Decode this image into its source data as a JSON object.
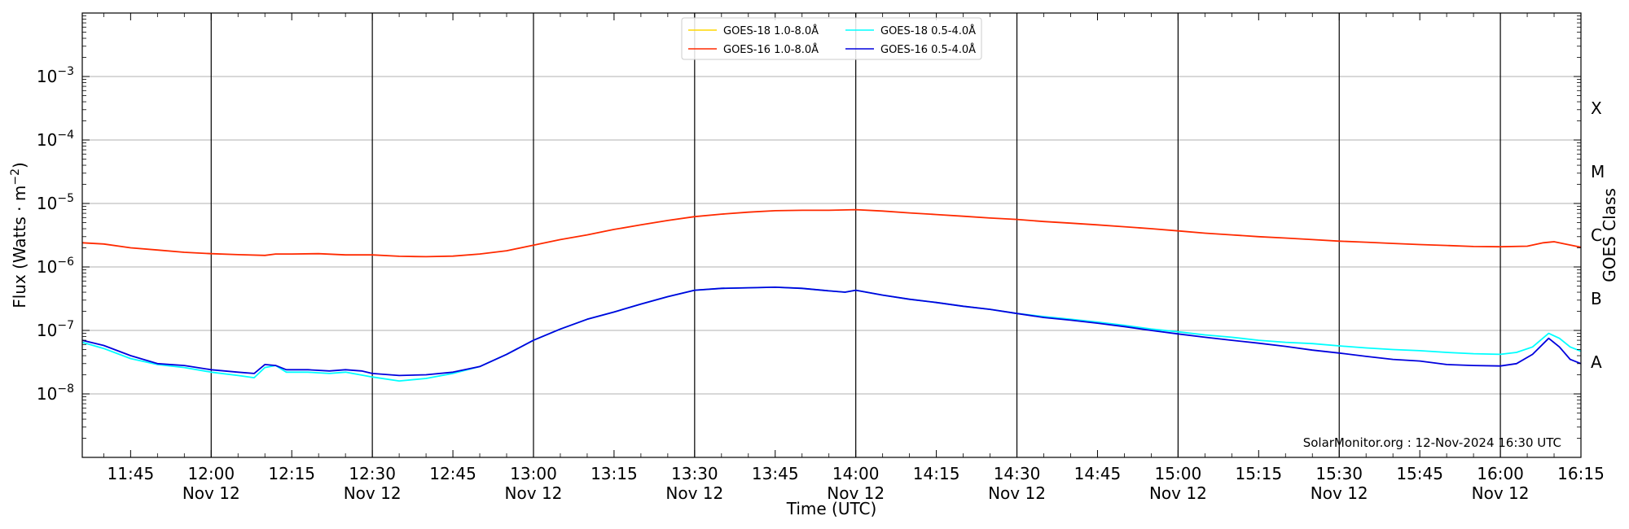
{
  "chart_data": {
    "type": "line",
    "xlabel": "Time (UTC)",
    "ylabel_main": "Flux (Watts · m",
    "ylabel_sup": "−2",
    "ylabel_close": ")",
    "y2label": "GOES Class",
    "watermark": "SolarMonitor.org : 12-Nov-2024 16:30 UTC",
    "y_scale": "log",
    "ylim": [
      1e-09,
      0.01
    ],
    "xlim": [
      "11:36",
      "16:15"
    ],
    "grid": "horizontal",
    "legend_position": "top-center",
    "y_ticks": [
      {
        "value": 0.001,
        "base": "10",
        "exp": "−3"
      },
      {
        "value": 0.0001,
        "base": "10",
        "exp": "−4"
      },
      {
        "value": 1e-05,
        "base": "10",
        "exp": "−5"
      },
      {
        "value": 1e-06,
        "base": "10",
        "exp": "−6"
      },
      {
        "value": 1e-07,
        "base": "10",
        "exp": "−7"
      },
      {
        "value": 1e-08,
        "base": "10",
        "exp": "−8"
      }
    ],
    "x_ticks": [
      {
        "time": "11:45",
        "label": "11:45",
        "date": ""
      },
      {
        "time": "12:00",
        "label": "12:00",
        "date": "Nov 12"
      },
      {
        "time": "12:15",
        "label": "12:15",
        "date": ""
      },
      {
        "time": "12:30",
        "label": "12:30",
        "date": "Nov 12"
      },
      {
        "time": "12:45",
        "label": "12:45",
        "date": ""
      },
      {
        "time": "13:00",
        "label": "13:00",
        "date": "Nov 12"
      },
      {
        "time": "13:15",
        "label": "13:15",
        "date": ""
      },
      {
        "time": "13:30",
        "label": "13:30",
        "date": "Nov 12"
      },
      {
        "time": "13:45",
        "label": "13:45",
        "date": ""
      },
      {
        "time": "14:00",
        "label": "14:00",
        "date": "Nov 12"
      },
      {
        "time": "14:15",
        "label": "14:15",
        "date": ""
      },
      {
        "time": "14:30",
        "label": "14:30",
        "date": "Nov 12"
      },
      {
        "time": "14:45",
        "label": "14:45",
        "date": ""
      },
      {
        "time": "15:00",
        "label": "15:00",
        "date": "Nov 12"
      },
      {
        "time": "15:15",
        "label": "15:15",
        "date": ""
      },
      {
        "time": "15:30",
        "label": "15:30",
        "date": "Nov 12"
      },
      {
        "time": "15:45",
        "label": "15:45",
        "date": ""
      },
      {
        "time": "16:00",
        "label": "16:00",
        "date": "Nov 12"
      },
      {
        "time": "16:15",
        "label": "16:15",
        "date": ""
      }
    ],
    "vertical_lines": [
      "12:00",
      "12:30",
      "13:00",
      "13:30",
      "14:00",
      "14:30",
      "15:00",
      "15:30",
      "16:00"
    ],
    "goes_classes": [
      {
        "label": "X",
        "value": 0.000316
      },
      {
        "label": "M",
        "value": 3.16e-05
      },
      {
        "label": "C",
        "value": 3.16e-06
      },
      {
        "label": "B",
        "value": 3.16e-07
      },
      {
        "label": "A",
        "value": 3.16e-08
      }
    ],
    "series": [
      {
        "name": "GOES-18 1.0-8.0Å",
        "color": "#ffd700",
        "points": []
      },
      {
        "name": "GOES-16 1.0-8.0Å",
        "color": "#ff2a00",
        "points": [
          [
            "11:36",
            2.4e-06
          ],
          [
            "11:40",
            2.3e-06
          ],
          [
            "11:45",
            2e-06
          ],
          [
            "11:50",
            1.85e-06
          ],
          [
            "11:55",
            1.7e-06
          ],
          [
            "12:00",
            1.62e-06
          ],
          [
            "12:05",
            1.56e-06
          ],
          [
            "12:10",
            1.52e-06
          ],
          [
            "12:12",
            1.6e-06
          ],
          [
            "12:15",
            1.6e-06
          ],
          [
            "12:20",
            1.62e-06
          ],
          [
            "12:25",
            1.55e-06
          ],
          [
            "12:30",
            1.55e-06
          ],
          [
            "12:35",
            1.47e-06
          ],
          [
            "12:40",
            1.45e-06
          ],
          [
            "12:45",
            1.48e-06
          ],
          [
            "12:50",
            1.6e-06
          ],
          [
            "12:55",
            1.8e-06
          ],
          [
            "13:00",
            2.2e-06
          ],
          [
            "13:05",
            2.7e-06
          ],
          [
            "13:10",
            3.2e-06
          ],
          [
            "13:15",
            3.9e-06
          ],
          [
            "13:20",
            4.6e-06
          ],
          [
            "13:25",
            5.4e-06
          ],
          [
            "13:30",
            6.2e-06
          ],
          [
            "13:35",
            6.8e-06
          ],
          [
            "13:40",
            7.3e-06
          ],
          [
            "13:45",
            7.7e-06
          ],
          [
            "13:50",
            7.8e-06
          ],
          [
            "13:55",
            7.8e-06
          ],
          [
            "14:00",
            8e-06
          ],
          [
            "14:05",
            7.6e-06
          ],
          [
            "14:10",
            7.1e-06
          ],
          [
            "14:15",
            6.7e-06
          ],
          [
            "14:20",
            6.3e-06
          ],
          [
            "14:25",
            5.9e-06
          ],
          [
            "14:30",
            5.6e-06
          ],
          [
            "14:35",
            5.2e-06
          ],
          [
            "14:40",
            4.9e-06
          ],
          [
            "14:45",
            4.6e-06
          ],
          [
            "14:50",
            4.3e-06
          ],
          [
            "14:55",
            4e-06
          ],
          [
            "15:00",
            3.7e-06
          ],
          [
            "15:05",
            3.4e-06
          ],
          [
            "15:10",
            3.2e-06
          ],
          [
            "15:15",
            3e-06
          ],
          [
            "15:20",
            2.85e-06
          ],
          [
            "15:25",
            2.7e-06
          ],
          [
            "15:30",
            2.55e-06
          ],
          [
            "15:35",
            2.45e-06
          ],
          [
            "15:40",
            2.35e-06
          ],
          [
            "15:45",
            2.25e-06
          ],
          [
            "15:50",
            2.18e-06
          ],
          [
            "15:55",
            2.1e-06
          ],
          [
            "16:00",
            2.08e-06
          ],
          [
            "16:05",
            2.12e-06
          ],
          [
            "16:08",
            2.4e-06
          ],
          [
            "16:10",
            2.5e-06
          ],
          [
            "16:12",
            2.3e-06
          ],
          [
            "16:15",
            2.05e-06
          ]
        ]
      },
      {
        "name": "GOES-18 0.5-4.0Å",
        "color": "#00ffff",
        "points": [
          [
            "11:36",
            6.5e-08
          ],
          [
            "11:40",
            5.2e-08
          ],
          [
            "11:45",
            3.6e-08
          ],
          [
            "11:50",
            2.9e-08
          ],
          [
            "11:55",
            2.6e-08
          ],
          [
            "12:00",
            2.2e-08
          ],
          [
            "12:05",
            1.95e-08
          ],
          [
            "12:08",
            1.8e-08
          ],
          [
            "12:10",
            2.6e-08
          ],
          [
            "12:12",
            2.8e-08
          ],
          [
            "12:14",
            2.2e-08
          ],
          [
            "12:18",
            2.2e-08
          ],
          [
            "12:22",
            2.1e-08
          ],
          [
            "12:25",
            2.2e-08
          ],
          [
            "12:30",
            1.85e-08
          ],
          [
            "12:35",
            1.6e-08
          ],
          [
            "12:40",
            1.75e-08
          ],
          [
            "12:45",
            2.1e-08
          ],
          [
            "12:50",
            2.7e-08
          ],
          [
            "12:55",
            4.2e-08
          ],
          [
            "13:00",
            7e-08
          ],
          [
            "13:05",
            1.05e-07
          ],
          [
            "13:10",
            1.5e-07
          ],
          [
            "13:15",
            1.95e-07
          ],
          [
            "13:20",
            2.6e-07
          ],
          [
            "13:25",
            3.4e-07
          ],
          [
            "13:30",
            4.3e-07
          ],
          [
            "13:35",
            4.6e-07
          ],
          [
            "13:40",
            4.7e-07
          ],
          [
            "13:45",
            4.8e-07
          ],
          [
            "13:50",
            4.6e-07
          ],
          [
            "13:55",
            4.2e-07
          ],
          [
            "13:58",
            4e-07
          ],
          [
            "14:00",
            4.3e-07
          ],
          [
            "14:05",
            3.6e-07
          ],
          [
            "14:10",
            3.1e-07
          ],
          [
            "14:15",
            2.75e-07
          ],
          [
            "14:20",
            2.4e-07
          ],
          [
            "14:25",
            2.15e-07
          ],
          [
            "14:30",
            1.85e-07
          ],
          [
            "14:35",
            1.65e-07
          ],
          [
            "14:40",
            1.5e-07
          ],
          [
            "14:45",
            1.35e-07
          ],
          [
            "14:50",
            1.2e-07
          ],
          [
            "14:55",
            1.05e-07
          ],
          [
            "15:00",
            9.5e-08
          ],
          [
            "15:05",
            8.5e-08
          ],
          [
            "15:10",
            7.8e-08
          ],
          [
            "15:15",
            7e-08
          ],
          [
            "15:20",
            6.5e-08
          ],
          [
            "15:25",
            6.2e-08
          ],
          [
            "15:30",
            5.7e-08
          ],
          [
            "15:35",
            5.3e-08
          ],
          [
            "15:40",
            5e-08
          ],
          [
            "15:45",
            4.8e-08
          ],
          [
            "15:50",
            4.5e-08
          ],
          [
            "15:55",
            4.3e-08
          ],
          [
            "16:00",
            4.2e-08
          ],
          [
            "16:03",
            4.5e-08
          ],
          [
            "16:06",
            5.5e-08
          ],
          [
            "16:09",
            9e-08
          ],
          [
            "16:11",
            7.5e-08
          ],
          [
            "16:13",
            5.5e-08
          ],
          [
            "16:15",
            4.7e-08
          ]
        ]
      },
      {
        "name": "GOES-16 0.5-4.0Å",
        "color": "#0000dd",
        "points": [
          [
            "11:36",
            7e-08
          ],
          [
            "11:40",
            5.8e-08
          ],
          [
            "11:45",
            4e-08
          ],
          [
            "11:50",
            3e-08
          ],
          [
            "11:55",
            2.8e-08
          ],
          [
            "12:00",
            2.4e-08
          ],
          [
            "12:05",
            2.2e-08
          ],
          [
            "12:08",
            2.1e-08
          ],
          [
            "12:10",
            2.9e-08
          ],
          [
            "12:12",
            2.8e-08
          ],
          [
            "12:14",
            2.4e-08
          ],
          [
            "12:18",
            2.4e-08
          ],
          [
            "12:22",
            2.3e-08
          ],
          [
            "12:25",
            2.4e-08
          ],
          [
            "12:28",
            2.3e-08
          ],
          [
            "12:30",
            2.1e-08
          ],
          [
            "12:35",
            1.95e-08
          ],
          [
            "12:40",
            2e-08
          ],
          [
            "12:45",
            2.2e-08
          ],
          [
            "12:50",
            2.7e-08
          ],
          [
            "12:55",
            4.2e-08
          ],
          [
            "13:00",
            7e-08
          ],
          [
            "13:05",
            1.05e-07
          ],
          [
            "13:10",
            1.5e-07
          ],
          [
            "13:15",
            1.95e-07
          ],
          [
            "13:20",
            2.6e-07
          ],
          [
            "13:25",
            3.4e-07
          ],
          [
            "13:30",
            4.3e-07
          ],
          [
            "13:35",
            4.6e-07
          ],
          [
            "13:40",
            4.7e-07
          ],
          [
            "13:45",
            4.8e-07
          ],
          [
            "13:50",
            4.6e-07
          ],
          [
            "13:55",
            4.2e-07
          ],
          [
            "13:58",
            4e-07
          ],
          [
            "14:00",
            4.3e-07
          ],
          [
            "14:05",
            3.6e-07
          ],
          [
            "14:10",
            3.1e-07
          ],
          [
            "14:15",
            2.75e-07
          ],
          [
            "14:20",
            2.4e-07
          ],
          [
            "14:25",
            2.15e-07
          ],
          [
            "14:30",
            1.85e-07
          ],
          [
            "14:35",
            1.6e-07
          ],
          [
            "14:40",
            1.45e-07
          ],
          [
            "14:45",
            1.3e-07
          ],
          [
            "14:50",
            1.15e-07
          ],
          [
            "14:55",
            1e-07
          ],
          [
            "15:00",
            8.8e-08
          ],
          [
            "15:05",
            7.8e-08
          ],
          [
            "15:10",
            7e-08
          ],
          [
            "15:15",
            6.3e-08
          ],
          [
            "15:20",
            5.6e-08
          ],
          [
            "15:25",
            4.9e-08
          ],
          [
            "15:30",
            4.4e-08
          ],
          [
            "15:35",
            3.9e-08
          ],
          [
            "15:40",
            3.5e-08
          ],
          [
            "15:45",
            3.3e-08
          ],
          [
            "15:50",
            2.9e-08
          ],
          [
            "15:55",
            2.8e-08
          ],
          [
            "16:00",
            2.75e-08
          ],
          [
            "16:03",
            3e-08
          ],
          [
            "16:06",
            4.2e-08
          ],
          [
            "16:09",
            7.5e-08
          ],
          [
            "16:11",
            5.5e-08
          ],
          [
            "16:13",
            3.5e-08
          ],
          [
            "16:15",
            3e-08
          ]
        ]
      }
    ]
  }
}
